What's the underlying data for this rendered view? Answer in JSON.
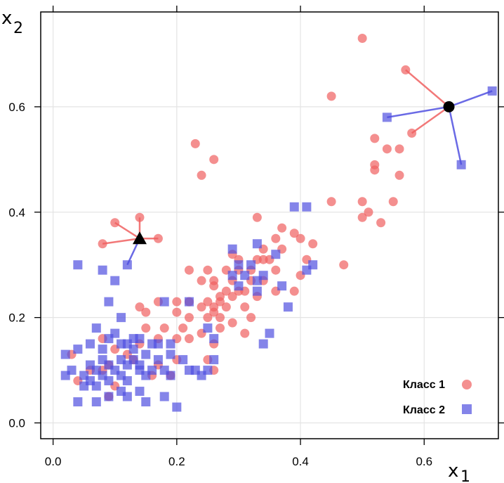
{
  "chart_data": {
    "type": "scatter",
    "title": "",
    "xlabel": "x",
    "xlabel_sub": "1",
    "ylabel": "x",
    "ylabel_sub": "2",
    "xlim": [
      -0.02,
      0.72
    ],
    "ylim": [
      -0.03,
      0.78
    ],
    "grid": true,
    "x_ticks": [
      0.0,
      0.2,
      0.4,
      0.6
    ],
    "x_tick_labels": [
      "0.0",
      "0.2",
      "0.4",
      "0.6"
    ],
    "y_ticks": [
      0.0,
      0.2,
      0.4,
      0.6
    ],
    "y_tick_labels": [
      "0.0",
      "0.2",
      "0.4",
      "0.6"
    ],
    "legend_position": "bottom-right",
    "colors": {
      "class1": "#f06060",
      "class2": "#5050e0",
      "query": "#000000"
    },
    "series": [
      {
        "name": "Класс 1",
        "marker": "circle",
        "points": [
          [
            0.5,
            0.73
          ],
          [
            0.57,
            0.67
          ],
          [
            0.45,
            0.62
          ],
          [
            0.58,
            0.55
          ],
          [
            0.52,
            0.54
          ],
          [
            0.54,
            0.52
          ],
          [
            0.56,
            0.52
          ],
          [
            0.52,
            0.49
          ],
          [
            0.52,
            0.48
          ],
          [
            0.56,
            0.47
          ],
          [
            0.45,
            0.42
          ],
          [
            0.5,
            0.42
          ],
          [
            0.55,
            0.42
          ],
          [
            0.51,
            0.4
          ],
          [
            0.5,
            0.39
          ],
          [
            0.53,
            0.38
          ],
          [
            0.23,
            0.53
          ],
          [
            0.26,
            0.5
          ],
          [
            0.24,
            0.47
          ],
          [
            0.33,
            0.39
          ],
          [
            0.37,
            0.37
          ],
          [
            0.39,
            0.36
          ],
          [
            0.36,
            0.35
          ],
          [
            0.4,
            0.35
          ],
          [
            0.42,
            0.34
          ],
          [
            0.34,
            0.33
          ],
          [
            0.37,
            0.33
          ],
          [
            0.29,
            0.32
          ],
          [
            0.3,
            0.31
          ],
          [
            0.33,
            0.31
          ],
          [
            0.34,
            0.31
          ],
          [
            0.35,
            0.31
          ],
          [
            0.41,
            0.31
          ],
          [
            0.47,
            0.3
          ],
          [
            0.22,
            0.29
          ],
          [
            0.25,
            0.29
          ],
          [
            0.28,
            0.29
          ],
          [
            0.3,
            0.29
          ],
          [
            0.32,
            0.29
          ],
          [
            0.36,
            0.29
          ],
          [
            0.4,
            0.28
          ],
          [
            0.24,
            0.27
          ],
          [
            0.26,
            0.27
          ],
          [
            0.29,
            0.27
          ],
          [
            0.32,
            0.27
          ],
          [
            0.34,
            0.27
          ],
          [
            0.26,
            0.26
          ],
          [
            0.28,
            0.25
          ],
          [
            0.3,
            0.25
          ],
          [
            0.31,
            0.25
          ],
          [
            0.27,
            0.24
          ],
          [
            0.29,
            0.24
          ],
          [
            0.33,
            0.24
          ],
          [
            0.36,
            0.25
          ],
          [
            0.39,
            0.25
          ],
          [
            0.2,
            0.23
          ],
          [
            0.22,
            0.23
          ],
          [
            0.25,
            0.23
          ],
          [
            0.27,
            0.23
          ],
          [
            0.17,
            0.23
          ],
          [
            0.26,
            0.22
          ],
          [
            0.28,
            0.22
          ],
          [
            0.31,
            0.22
          ],
          [
            0.14,
            0.22
          ],
          [
            0.15,
            0.21
          ],
          [
            0.2,
            0.21
          ],
          [
            0.24,
            0.22
          ],
          [
            0.26,
            0.21
          ],
          [
            0.25,
            0.2
          ],
          [
            0.27,
            0.2
          ],
          [
            0.32,
            0.2
          ],
          [
            0.29,
            0.19
          ],
          [
            0.22,
            0.2
          ],
          [
            0.15,
            0.18
          ],
          [
            0.18,
            0.18
          ],
          [
            0.21,
            0.18
          ],
          [
            0.24,
            0.17
          ],
          [
            0.27,
            0.18
          ],
          [
            0.31,
            0.17
          ],
          [
            0.17,
            0.16
          ],
          [
            0.2,
            0.16
          ],
          [
            0.22,
            0.16
          ],
          [
            0.26,
            0.15
          ],
          [
            0.08,
            0.16
          ],
          [
            0.14,
            0.15
          ],
          [
            0.1,
            0.14
          ],
          [
            0.03,
            0.13
          ],
          [
            0.12,
            0.13
          ],
          [
            0.13,
            0.12
          ],
          [
            0.2,
            0.12
          ],
          [
            0.09,
            0.11
          ],
          [
            0.17,
            0.11
          ],
          [
            0.06,
            0.1
          ],
          [
            0.08,
            0.1
          ],
          [
            0.16,
            0.09
          ],
          [
            0.19,
            0.09
          ],
          [
            0.04,
            0.08
          ],
          [
            0.1,
            0.07
          ],
          [
            0.09,
            0.05
          ],
          [
            0.25,
            0.12
          ],
          [
            0.26,
            0.1
          ],
          [
            0.1,
            0.38
          ],
          [
            0.14,
            0.39
          ],
          [
            0.08,
            0.34
          ],
          [
            0.17,
            0.35
          ]
        ]
      },
      {
        "name": "Класс 2",
        "marker": "square",
        "points": [
          [
            0.71,
            0.63
          ],
          [
            0.54,
            0.58
          ],
          [
            0.66,
            0.49
          ],
          [
            0.12,
            0.3
          ],
          [
            0.04,
            0.3
          ],
          [
            0.08,
            0.29
          ],
          [
            0.1,
            0.27
          ],
          [
            0.09,
            0.23
          ],
          [
            0.39,
            0.41
          ],
          [
            0.41,
            0.41
          ],
          [
            0.29,
            0.33
          ],
          [
            0.33,
            0.34
          ],
          [
            0.3,
            0.3
          ],
          [
            0.32,
            0.3
          ],
          [
            0.31,
            0.28
          ],
          [
            0.33,
            0.27
          ],
          [
            0.36,
            0.32
          ],
          [
            0.42,
            0.3
          ],
          [
            0.3,
            0.26
          ],
          [
            0.33,
            0.25
          ],
          [
            0.37,
            0.26
          ],
          [
            0.38,
            0.22
          ],
          [
            0.41,
            0.29
          ],
          [
            0.22,
            0.23
          ],
          [
            0.25,
            0.18
          ],
          [
            0.26,
            0.16
          ],
          [
            0.18,
            0.23
          ],
          [
            0.35,
            0.17
          ],
          [
            0.34,
            0.15
          ],
          [
            0.11,
            0.2
          ],
          [
            0.14,
            0.16
          ],
          [
            0.13,
            0.16
          ],
          [
            0.07,
            0.18
          ],
          [
            0.1,
            0.17
          ],
          [
            0.09,
            0.16
          ],
          [
            0.06,
            0.15
          ],
          [
            0.11,
            0.15
          ],
          [
            0.12,
            0.15
          ],
          [
            0.16,
            0.15
          ],
          [
            0.17,
            0.15
          ],
          [
            0.19,
            0.15
          ],
          [
            0.04,
            0.14
          ],
          [
            0.08,
            0.14
          ],
          [
            0.13,
            0.14
          ],
          [
            0.15,
            0.13
          ],
          [
            0.19,
            0.13
          ],
          [
            0.21,
            0.12
          ],
          [
            0.02,
            0.13
          ],
          [
            0.08,
            0.12
          ],
          [
            0.11,
            0.12
          ],
          [
            0.13,
            0.12
          ],
          [
            0.17,
            0.12
          ],
          [
            0.06,
            0.11
          ],
          [
            0.09,
            0.11
          ],
          [
            0.12,
            0.11
          ],
          [
            0.14,
            0.11
          ],
          [
            0.03,
            0.1
          ],
          [
            0.07,
            0.1
          ],
          [
            0.1,
            0.1
          ],
          [
            0.14,
            0.1
          ],
          [
            0.18,
            0.1
          ],
          [
            0.22,
            0.1
          ],
          [
            0.23,
            0.1
          ],
          [
            0.25,
            0.1
          ],
          [
            0.02,
            0.09
          ],
          [
            0.05,
            0.09
          ],
          [
            0.08,
            0.09
          ],
          [
            0.11,
            0.09
          ],
          [
            0.15,
            0.09
          ],
          [
            0.19,
            0.09
          ],
          [
            0.24,
            0.09
          ],
          [
            0.06,
            0.08
          ],
          [
            0.09,
            0.08
          ],
          [
            0.12,
            0.08
          ],
          [
            0.05,
            0.07
          ],
          [
            0.07,
            0.07
          ],
          [
            0.11,
            0.06
          ],
          [
            0.14,
            0.06
          ],
          [
            0.09,
            0.05
          ],
          [
            0.12,
            0.05
          ],
          [
            0.18,
            0.05
          ],
          [
            0.04,
            0.04
          ],
          [
            0.07,
            0.04
          ],
          [
            0.15,
            0.04
          ],
          [
            0.2,
            0.03
          ],
          [
            0.16,
            0.1
          ],
          [
            0.26,
            0.12
          ],
          [
            0.29,
            0.28
          ],
          [
            0.34,
            0.28
          ]
        ]
      }
    ],
    "queries": [
      {
        "marker": "triangle",
        "point": [
          0.14,
          0.35
        ],
        "neighbors": [
          {
            "class": "Класс 1",
            "point": [
              0.14,
              0.39
            ]
          },
          {
            "class": "Класс 1",
            "point": [
              0.1,
              0.38
            ]
          },
          {
            "class": "Класс 1",
            "point": [
              0.08,
              0.34
            ]
          },
          {
            "class": "Класс 1",
            "point": [
              0.17,
              0.35
            ]
          },
          {
            "class": "Класс 2",
            "point": [
              0.12,
              0.3
            ]
          }
        ]
      },
      {
        "marker": "circle",
        "point": [
          0.64,
          0.6
        ],
        "neighbors": [
          {
            "class": "Класс 1",
            "point": [
              0.57,
              0.67
            ]
          },
          {
            "class": "Класс 1",
            "point": [
              0.58,
              0.55
            ]
          },
          {
            "class": "Класс 2",
            "point": [
              0.71,
              0.63
            ]
          },
          {
            "class": "Класс 2",
            "point": [
              0.54,
              0.58
            ]
          },
          {
            "class": "Класс 2",
            "point": [
              0.66,
              0.49
            ]
          }
        ]
      }
    ],
    "legend": [
      {
        "label": "Класс 1",
        "marker": "circle"
      },
      {
        "label": "Класс 2",
        "marker": "square"
      }
    ]
  }
}
